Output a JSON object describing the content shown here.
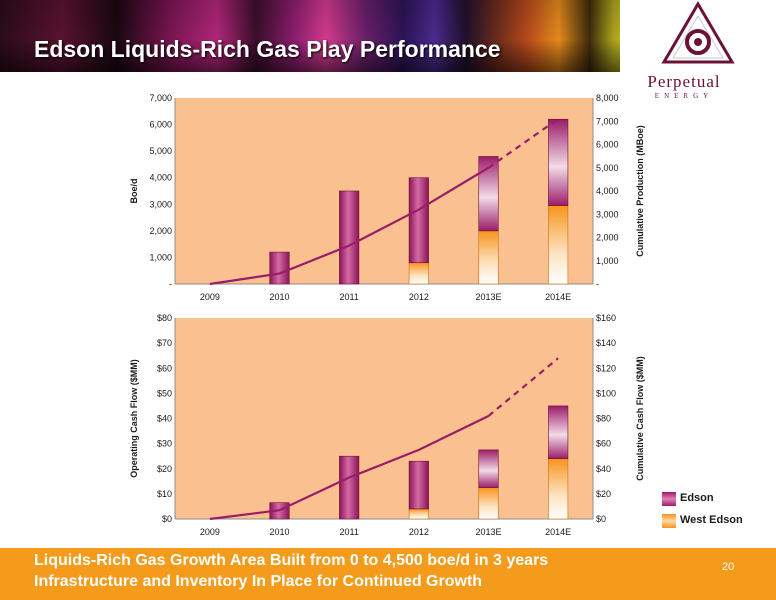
{
  "header": {
    "title": "Edson Liquids-Rich Gas Play Performance"
  },
  "logo": {
    "name": "Perpetual",
    "sub": "ENERGY"
  },
  "footer": {
    "line1": "Liquids-Rich Gas Growth Area Built from 0 to 4,500 boe/d in 3 years",
    "line2": "Infrastructure and Inventory In Place for Continued Growth",
    "page": "20"
  },
  "legend": [
    {
      "label": "Edson",
      "color": "#9b1c68"
    },
    {
      "label": "West Edson",
      "color": "#f7941d"
    }
  ],
  "colors": {
    "plot_bg": "#fac08f",
    "edson": "#9b1c68",
    "west_edson": "#f7941d",
    "line": "#9b1c68"
  },
  "chart_data": [
    {
      "type": "bar",
      "stacked": true,
      "combo_line": true,
      "categories": [
        "2009",
        "2010",
        "2011",
        "2012",
        "2013E",
        "2014E"
      ],
      "ylabel": "Boe/d",
      "y2label": "Cumulative Production (MBoe)",
      "ylim": [
        0,
        7000
      ],
      "y2lim": [
        0,
        8000
      ],
      "yticks": [
        "-",
        "1,000",
        "2,000",
        "3,000",
        "4,000",
        "5,000",
        "6,000",
        "7,000"
      ],
      "y2ticks": [
        "-",
        "1,000",
        "2,000",
        "3,000",
        "4,000",
        "5,000",
        "6,000",
        "7,000",
        "8,000"
      ],
      "series": [
        {
          "name": "West Edson",
          "values": [
            0,
            0,
            0,
            800,
            2000,
            2950
          ]
        },
        {
          "name": "Edson",
          "values": [
            0,
            1200,
            3500,
            3200,
            2800,
            3250
          ]
        }
      ],
      "line": {
        "values": [
          0,
          450,
          1650,
          3200,
          5000,
          7100
        ],
        "dashed_from_index": 4
      },
      "grid": false
    },
    {
      "type": "bar",
      "stacked": true,
      "combo_line": true,
      "categories": [
        "2009",
        "2010",
        "2011",
        "2012",
        "2013E",
        "2014E"
      ],
      "ylabel": "Operating Cash Flow ($MM)",
      "y2label": "Cumulative Cash Flow ($MM)",
      "ylim": [
        0,
        80
      ],
      "y2lim": [
        0,
        160
      ],
      "yticks": [
        "$0",
        "$10",
        "$20",
        "$30",
        "$40",
        "$50",
        "$60",
        "$70",
        "$80"
      ],
      "y2ticks": [
        "$0",
        "$20",
        "$40",
        "$60",
        "$80",
        "$100",
        "$120",
        "$140",
        "$160"
      ],
      "series": [
        {
          "name": "West Edson",
          "values": [
            0,
            0,
            0,
            4,
            12.5,
            24
          ]
        },
        {
          "name": "Edson",
          "values": [
            0,
            6.5,
            25,
            19,
            15,
            21
          ]
        }
      ],
      "line": {
        "values": [
          0,
          7,
          33,
          55,
          82,
          128
        ],
        "dashed_from_index": 4
      },
      "grid": false
    }
  ]
}
